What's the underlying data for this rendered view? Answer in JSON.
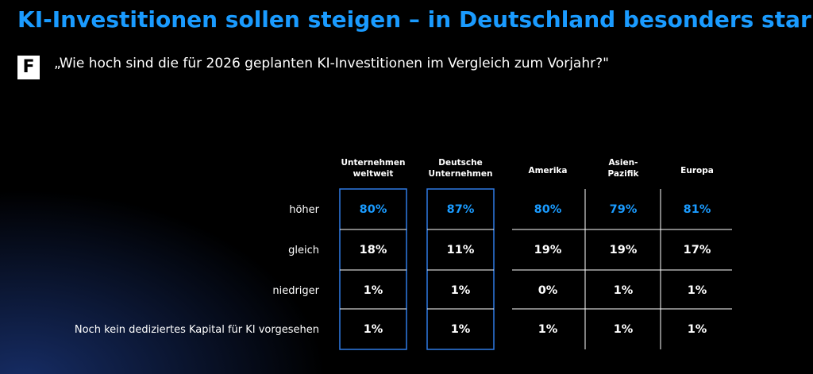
{
  "title": "KI-Investitionen sollen steigen – in Deutschland besonders stark",
  "badge": "F",
  "question": "„Wie hoch sind die für 2026 geplanten KI-Investitionen im Vergleich zum Vorjahr?\"",
  "colors": {
    "accent": "#1a9bff",
    "text": "#ffffff",
    "background": "#000000",
    "box_border": "#2f7be6"
  },
  "chart_data": {
    "type": "table",
    "columns": [
      [
        "Unternehmen",
        "weltweit"
      ],
      [
        "Deutsche",
        "Unternehmen"
      ],
      [
        "Amerika"
      ],
      [
        "Asien-",
        "Pazifik"
      ],
      [
        "Europa"
      ]
    ],
    "rows": [
      "höher",
      "gleich",
      "niedriger",
      "Noch kein dediziertes Kapital für KI vorgesehen"
    ],
    "values": [
      [
        "80%",
        "87%",
        "80%",
        "79%",
        "81%"
      ],
      [
        "18%",
        "11%",
        "19%",
        "19%",
        "17%"
      ],
      [
        "1%",
        "1%",
        "0%",
        "1%",
        "1%"
      ],
      [
        "1%",
        "1%",
        "1%",
        "1%",
        "1%"
      ]
    ],
    "highlight_row": 0,
    "boxed_columns": [
      0,
      1
    ]
  }
}
